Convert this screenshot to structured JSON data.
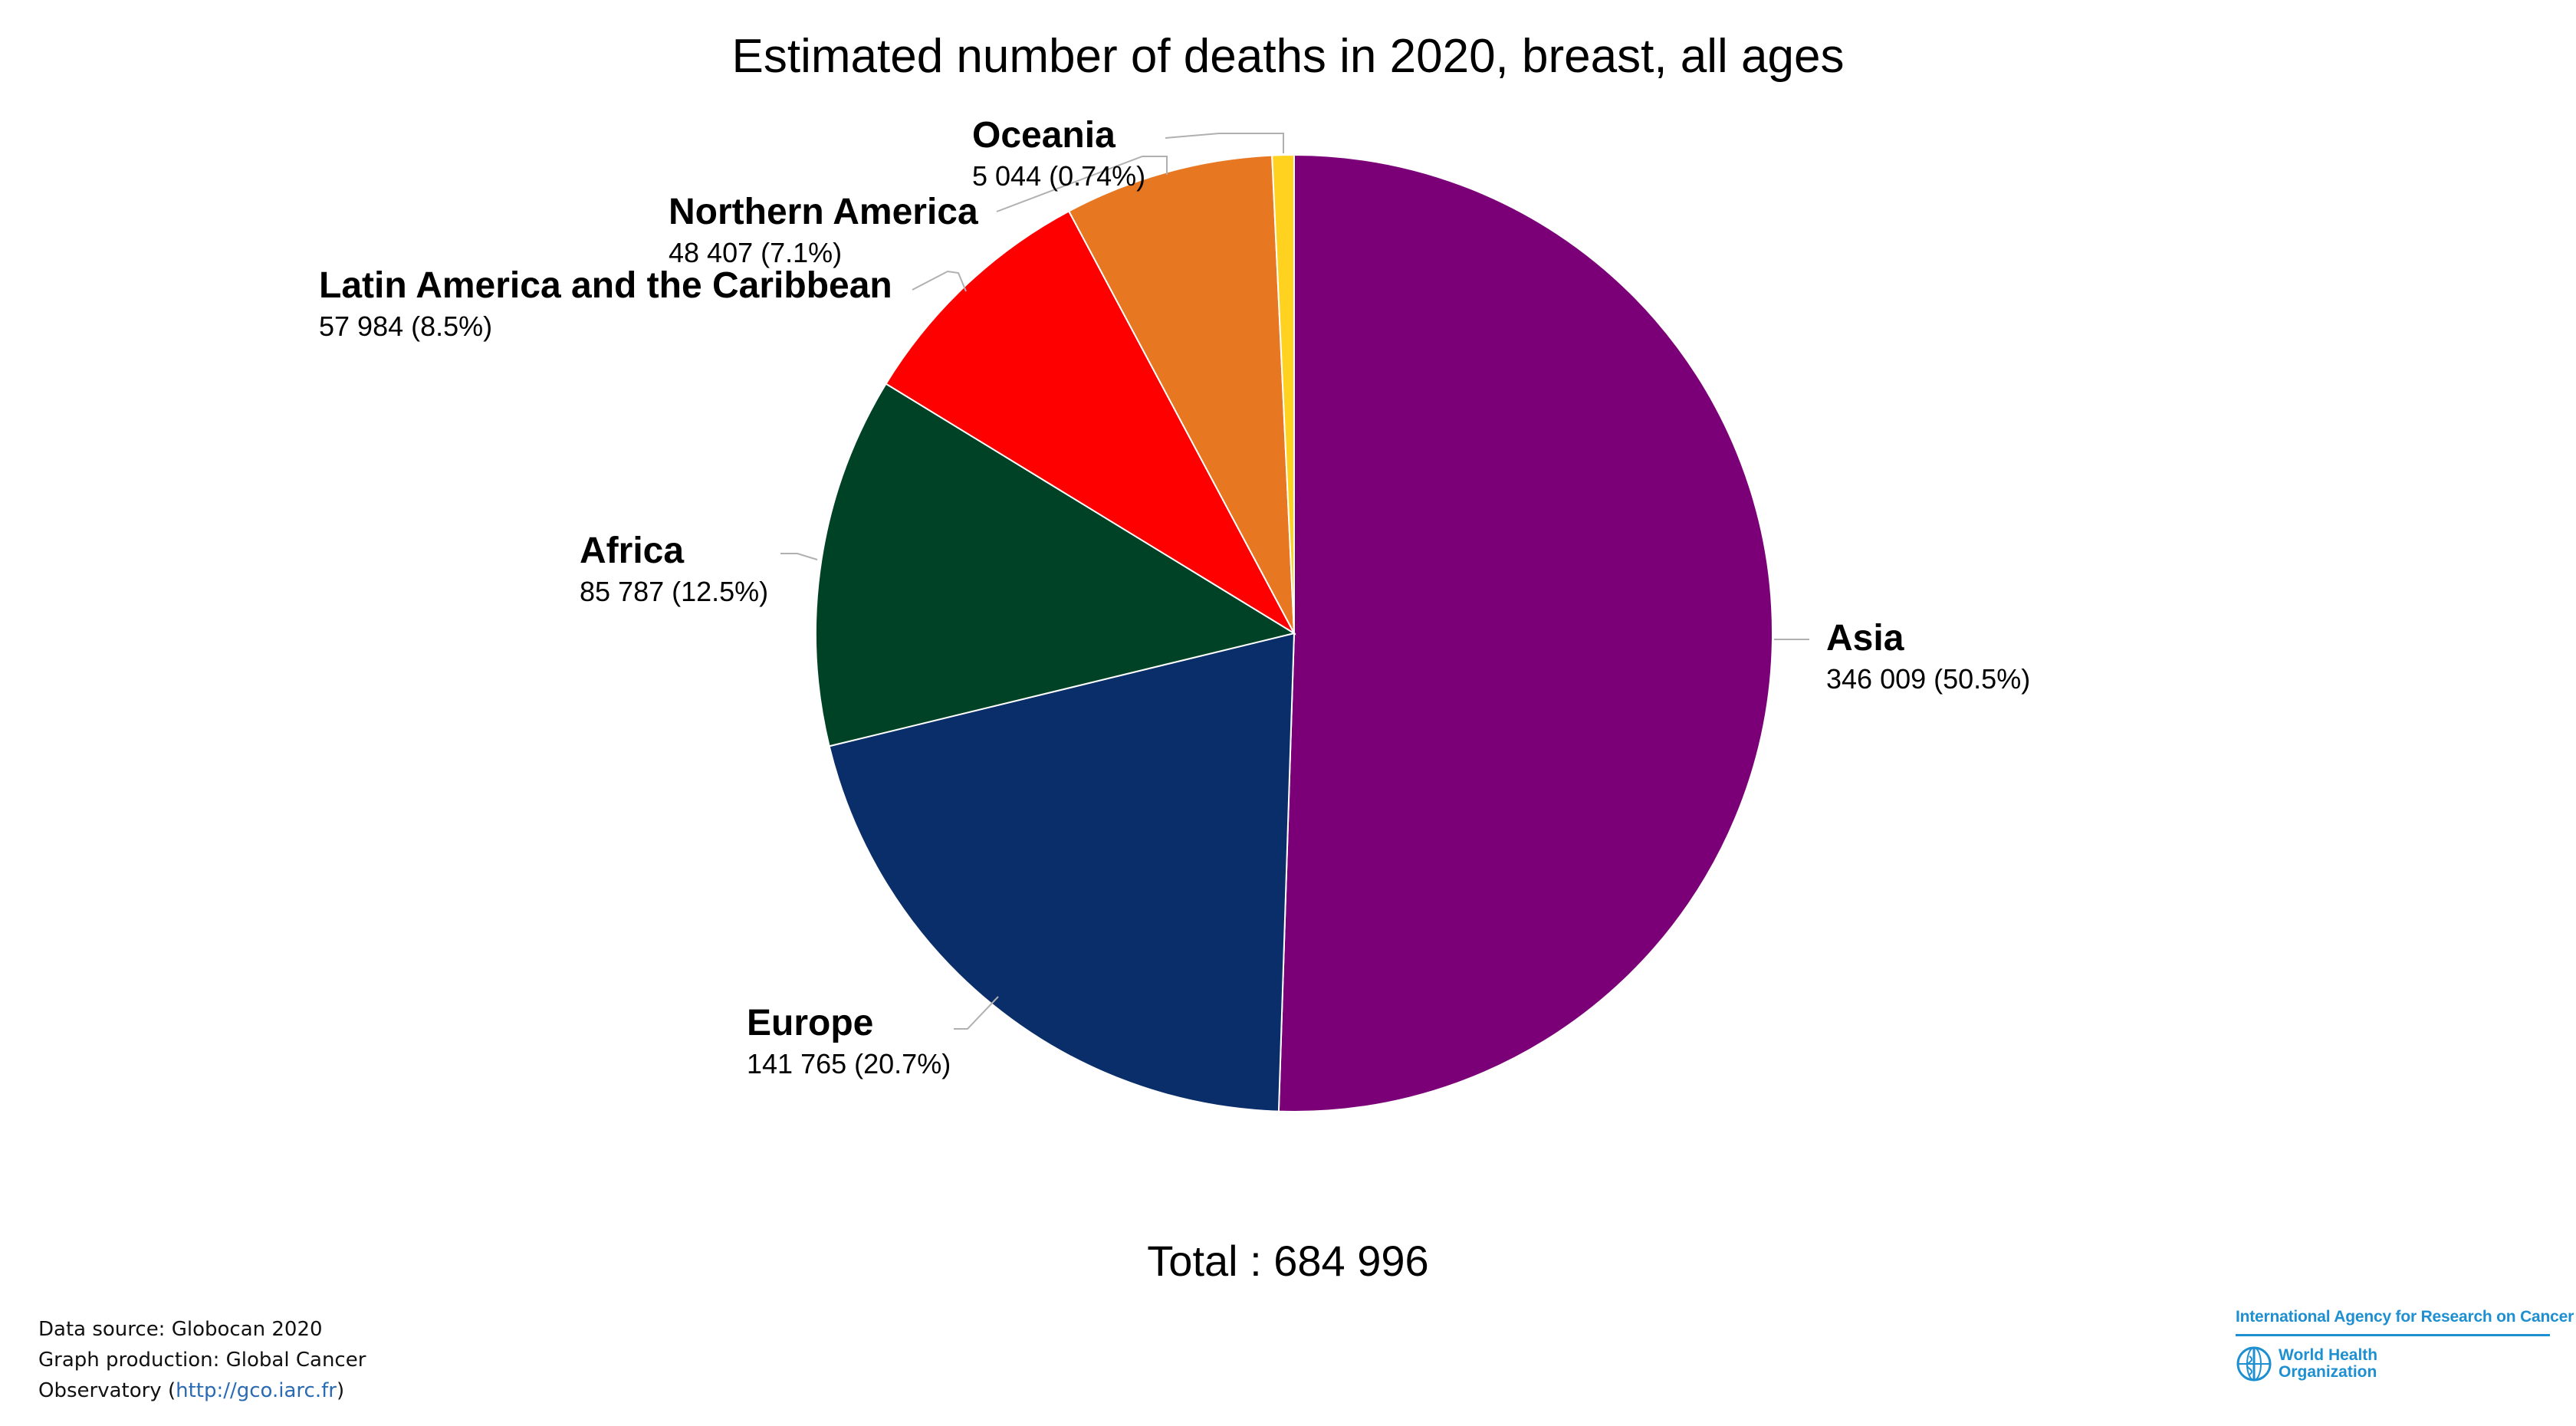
{
  "title": "Estimated number of deaths in 2020, breast, all ages",
  "total_label": "Total : 684 996",
  "footer": {
    "line1": "Data source: Globocan 2020",
    "line2": "Graph production: Global Cancer",
    "line3_prefix": "Observatory (",
    "line3_link": "http://gco.iarc.fr",
    "line3_suffix": ")"
  },
  "logo": {
    "iarc_text": "International Agency for Research on Cancer",
    "who_line1": "World Health",
    "who_line2": "Organization",
    "color": "#1e8fd0"
  },
  "chart_data": {
    "type": "pie",
    "title": "Estimated number of deaths in 2020, breast, all ages",
    "total": 684996,
    "slices": [
      {
        "name": "Asia",
        "value": 346009,
        "value_label": "346 009 (50.5%)",
        "percent": 50.5,
        "color": "#7b0078"
      },
      {
        "name": "Europe",
        "value": 141765,
        "value_label": "141 765 (20.7%)",
        "percent": 20.7,
        "color": "#0a2e6a"
      },
      {
        "name": "Africa",
        "value": 85787,
        "value_label": "85 787 (12.5%)",
        "percent": 12.5,
        "color": "#004225"
      },
      {
        "name": "Latin America and the Caribbean",
        "value": 57984,
        "value_label": "57 984 (8.5%)",
        "percent": 8.5,
        "color": "#ff0000"
      },
      {
        "name": "Northern America",
        "value": 48407,
        "value_label": "48 407 (7.1%)",
        "percent": 7.1,
        "color": "#e87722"
      },
      {
        "name": "Oceania",
        "value": 5044,
        "value_label": "5 044 (0.74%)",
        "percent": 0.74,
        "color": "#ffd21f"
      }
    ]
  }
}
